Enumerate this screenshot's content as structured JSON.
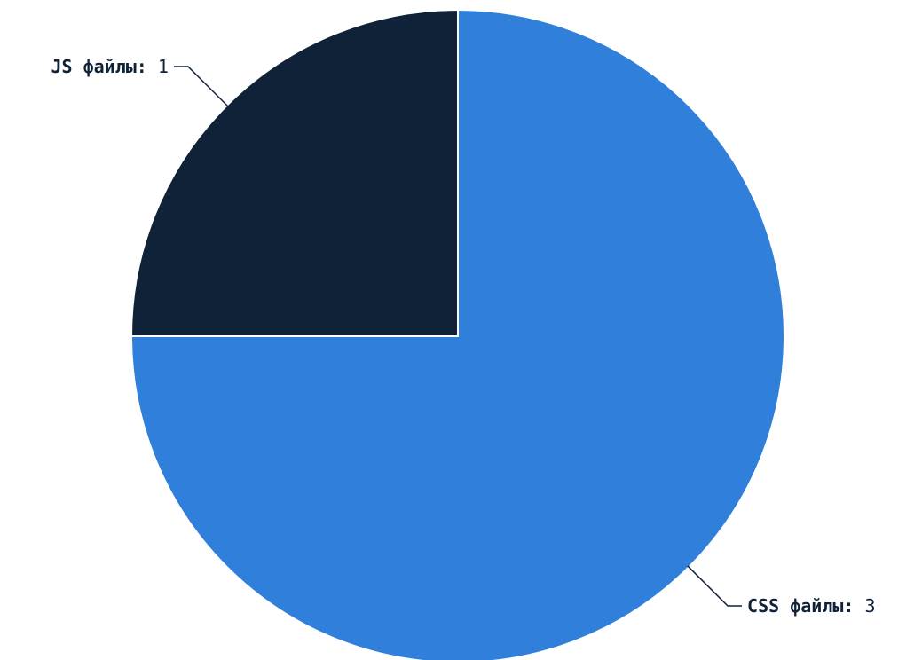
{
  "chart_data": {
    "type": "pie",
    "title": "",
    "slices": [
      {
        "label": "CSS файлы",
        "value": 3,
        "color": "#3080db"
      },
      {
        "label": "JS файлы",
        "value": 1,
        "color": "#0f2238"
      }
    ],
    "start_angle_deg": 0,
    "direction": "clockwise",
    "legend": "none",
    "labels": "outside-with-leader-lines"
  }
}
